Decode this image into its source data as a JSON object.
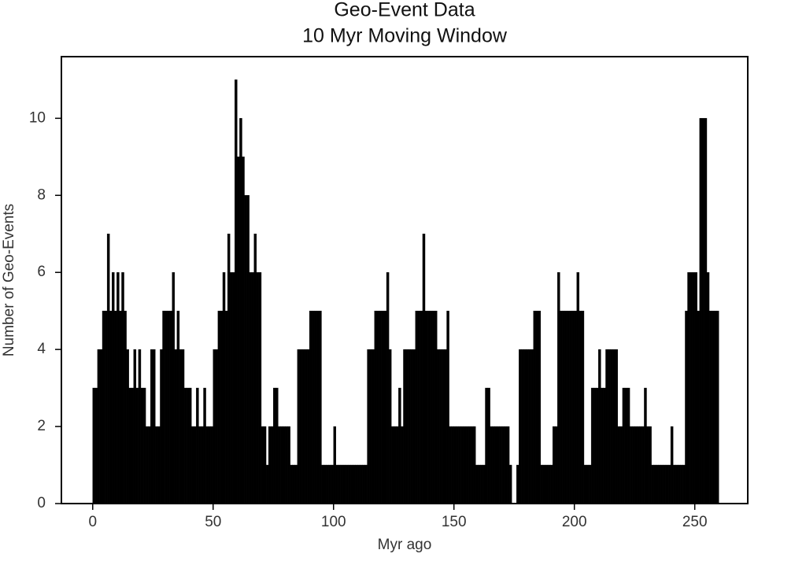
{
  "chart_data": {
    "type": "histogram",
    "title": "Geo-Event Data",
    "subtitle": "10 Myr Moving Window",
    "x_label": "Myr ago",
    "y_label": "Number of Geo-Events",
    "color": "#000000",
    "xlim": [
      -13,
      272
    ],
    "ylim": [
      0,
      11.6
    ],
    "xticks": [
      0,
      50,
      100,
      150,
      200,
      250
    ],
    "yticks": [
      0,
      2,
      4,
      6,
      8,
      10
    ],
    "bins": [
      0,
      1,
      2,
      3,
      4,
      5,
      6,
      7,
      8,
      9,
      10,
      11,
      12,
      13,
      14,
      15,
      16,
      17,
      18,
      19,
      20,
      21,
      22,
      23,
      24,
      25,
      26,
      27,
      28,
      29,
      30,
      31,
      32,
      33,
      34,
      35,
      36,
      37,
      38,
      39,
      40,
      41,
      42,
      43,
      44,
      45,
      46,
      47,
      48,
      49,
      50,
      51,
      52,
      53,
      54,
      55,
      56,
      57,
      58,
      59,
      60,
      61,
      62,
      63,
      64,
      65,
      66,
      67,
      68,
      69,
      70,
      71,
      72,
      73,
      74,
      75,
      76,
      77,
      78,
      79,
      80,
      81,
      82,
      83,
      84,
      85,
      86,
      87,
      88,
      89,
      90,
      91,
      92,
      93,
      94,
      95,
      96,
      97,
      98,
      99,
      100,
      101,
      102,
      103,
      104,
      105,
      106,
      107,
      108,
      109,
      110,
      111,
      112,
      113,
      114,
      115,
      116,
      117,
      118,
      119,
      120,
      121,
      122,
      123,
      124,
      125,
      126,
      127,
      128,
      129,
      130,
      131,
      132,
      133,
      134,
      135,
      136,
      137,
      138,
      139,
      140,
      141,
      142,
      143,
      144,
      145,
      146,
      147,
      148,
      149,
      150,
      151,
      152,
      153,
      154,
      155,
      156,
      157,
      158,
      159,
      160,
      161,
      162,
      163,
      164,
      165,
      166,
      167,
      168,
      169,
      170,
      171,
      172,
      173,
      174,
      175,
      176,
      177,
      178,
      179,
      180,
      181,
      182,
      183,
      184,
      185,
      186,
      187,
      188,
      189,
      190,
      191,
      192,
      193,
      194,
      195,
      196,
      197,
      198,
      199,
      200,
      201,
      202,
      203,
      204,
      205,
      206,
      207,
      208,
      209,
      210,
      211,
      212,
      213,
      214,
      215,
      216,
      217,
      218,
      219,
      220,
      221,
      222,
      223,
      224,
      225,
      226,
      227,
      228,
      229,
      230,
      231,
      232,
      233,
      234,
      235,
      236,
      237,
      238,
      239,
      240,
      241,
      242,
      243,
      244,
      245,
      246,
      247,
      248,
      249,
      250,
      251,
      252,
      253,
      254,
      255,
      256,
      257,
      258,
      259,
      260
    ],
    "values": [
      3,
      3,
      4,
      4,
      5,
      5,
      7,
      5,
      6,
      5,
      6,
      5,
      6,
      5,
      4,
      3,
      3,
      4,
      3,
      4,
      3,
      3,
      2,
      2,
      4,
      4,
      2,
      2,
      4,
      5,
      5,
      5,
      5,
      6,
      4,
      5,
      4,
      4,
      3,
      3,
      3,
      2,
      2,
      3,
      2,
      2,
      3,
      2,
      2,
      2,
      4,
      4,
      5,
      5,
      6,
      5,
      7,
      6,
      6,
      11,
      9,
      10,
      9,
      8,
      8,
      6,
      6,
      7,
      6,
      6,
      2,
      2,
      1,
      2,
      2,
      3,
      3,
      2,
      2,
      2,
      2,
      2,
      1,
      1,
      1,
      4,
      4,
      4,
      4,
      4,
      5,
      5,
      5,
      5,
      5,
      1,
      1,
      1,
      1,
      1,
      2,
      1,
      1,
      1,
      1,
      1,
      1,
      1,
      1,
      1,
      1,
      1,
      1,
      1,
      4,
      4,
      4,
      5,
      5,
      5,
      5,
      5,
      6,
      4,
      2,
      2,
      2,
      3,
      2,
      4,
      4,
      4,
      4,
      4,
      5,
      5,
      5,
      7,
      5,
      5,
      5,
      5,
      5,
      4,
      4,
      4,
      4,
      5,
      2,
      2,
      2,
      2,
      2,
      2,
      2,
      2,
      2,
      2,
      2,
      1,
      1,
      1,
      1,
      3,
      3,
      2,
      2,
      2,
      2,
      2,
      2,
      2,
      2,
      1,
      0,
      0,
      1,
      4,
      4,
      4,
      4,
      4,
      4,
      5,
      5,
      5,
      1,
      1,
      1,
      1,
      1,
      2,
      2,
      6,
      5,
      5,
      5,
      5,
      5,
      5,
      5,
      6,
      5,
      5,
      1,
      1,
      1,
      3,
      3,
      3,
      4,
      3,
      3,
      4,
      4,
      4,
      4,
      4,
      2,
      2,
      3,
      3,
      3,
      2,
      2,
      2,
      2,
      2,
      2,
      3,
      2,
      2,
      1,
      1,
      1,
      1,
      1,
      1,
      1,
      1,
      2,
      1,
      1,
      1,
      1,
      1,
      5,
      6,
      6,
      6,
      6,
      5,
      10,
      10,
      10,
      6,
      5,
      5,
      5,
      5
    ]
  }
}
